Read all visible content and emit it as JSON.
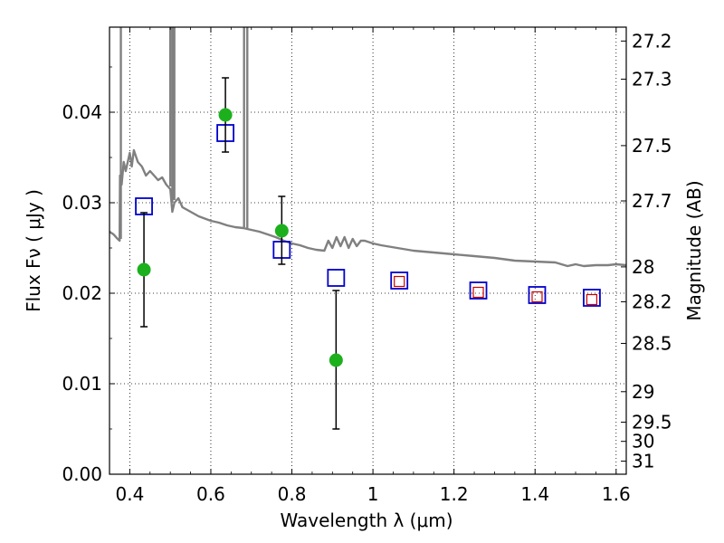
{
  "chart_data": {
    "type": "scatter",
    "xlabel": "Wavelength  λ (μm)",
    "ylabel": "Flux  Fν  ( μJy )",
    "y2label": "Magnitude (AB)",
    "xlim": [
      0.35,
      1.625
    ],
    "ylim": [
      0.0,
      0.0494
    ],
    "grid": true,
    "x_ticks": [
      0.4,
      0.6,
      0.8,
      1.0,
      1.2,
      1.4,
      1.6
    ],
    "x_tick_labels": [
      "0.4",
      "0.6",
      "0.8",
      "1",
      "1.2",
      "1.4",
      "1.6"
    ],
    "y_ticks": [
      0.0,
      0.01,
      0.02,
      0.03,
      0.04
    ],
    "y_tick_labels": [
      "0.00",
      "0.01",
      "0.02",
      "0.03",
      "0.04"
    ],
    "y2_ticks": [
      {
        "label": "27.2",
        "mag": 27.2
      },
      {
        "label": "27.3",
        "mag": 27.3
      },
      {
        "label": "27.5",
        "mag": 27.5
      },
      {
        "label": "27.7",
        "mag": 27.7
      },
      {
        "label": "28",
        "mag": 28.0
      },
      {
        "label": "28.2",
        "mag": 28.2
      },
      {
        "label": "28.5",
        "mag": 28.5
      },
      {
        "label": "29",
        "mag": 29.0
      },
      {
        "label": "29.5",
        "mag": 29.5
      },
      {
        "label": "30",
        "mag": 30.0
      },
      {
        "label": "31",
        "mag": 31.0
      }
    ],
    "observed": {
      "color": "#1db01d",
      "points": [
        {
          "x": 0.435,
          "y": 0.0226,
          "err_lo": 0.0163,
          "err_hi": 0.0289
        },
        {
          "x": 0.636,
          "y": 0.0397,
          "err_lo": 0.0356,
          "err_hi": 0.0438
        },
        {
          "x": 0.775,
          "y": 0.0269,
          "err_lo": 0.0232,
          "err_hi": 0.0307
        },
        {
          "x": 0.909,
          "y": 0.0126,
          "err_lo": 0.005,
          "err_hi": 0.0203
        }
      ]
    },
    "model_photometry": {
      "color": "#0000cc",
      "points": [
        {
          "x": 0.435,
          "y": 0.0296
        },
        {
          "x": 0.636,
          "y": 0.0377
        },
        {
          "x": 0.775,
          "y": 0.0248
        },
        {
          "x": 0.909,
          "y": 0.0217
        },
        {
          "x": 1.065,
          "y": 0.0214
        },
        {
          "x": 1.26,
          "y": 0.0203
        },
        {
          "x": 1.405,
          "y": 0.0198
        },
        {
          "x": 1.54,
          "y": 0.0195
        }
      ]
    },
    "red_photometry": {
      "color": "#cc0000",
      "points": [
        {
          "x": 1.065,
          "y": 0.0213
        },
        {
          "x": 1.26,
          "y": 0.0201
        },
        {
          "x": 1.405,
          "y": 0.0196
        },
        {
          "x": 1.54,
          "y": 0.0193
        }
      ]
    },
    "sed_spectrum": {
      "color": "#808080",
      "points": [
        [
          0.35,
          0.0268
        ],
        [
          0.36,
          0.0265
        ],
        [
          0.37,
          0.026
        ],
        [
          0.375,
          0.0258
        ],
        [
          0.376,
          0.033
        ],
        [
          0.38,
          0.032
        ],
        [
          0.385,
          0.0345
        ],
        [
          0.39,
          0.0335
        ],
        [
          0.4,
          0.0355
        ],
        [
          0.405,
          0.034
        ],
        [
          0.41,
          0.0358
        ],
        [
          0.42,
          0.0345
        ],
        [
          0.43,
          0.034
        ],
        [
          0.44,
          0.033
        ],
        [
          0.45,
          0.0335
        ],
        [
          0.46,
          0.033
        ],
        [
          0.47,
          0.0325
        ],
        [
          0.48,
          0.0328
        ],
        [
          0.49,
          0.032
        ],
        [
          0.5,
          0.0315
        ],
        [
          0.505,
          0.029
        ],
        [
          0.51,
          0.03
        ],
        [
          0.52,
          0.0305
        ],
        [
          0.53,
          0.0295
        ],
        [
          0.55,
          0.029
        ],
        [
          0.57,
          0.0285
        ],
        [
          0.6,
          0.028
        ],
        [
          0.62,
          0.0278
        ],
        [
          0.64,
          0.0275
        ],
        [
          0.66,
          0.0273
        ],
        [
          0.68,
          0.0272
        ],
        [
          0.7,
          0.027
        ],
        [
          0.72,
          0.0268
        ],
        [
          0.74,
          0.0265
        ],
        [
          0.76,
          0.0262
        ],
        [
          0.78,
          0.0258
        ],
        [
          0.8,
          0.0255
        ],
        [
          0.82,
          0.0253
        ],
        [
          0.84,
          0.025
        ],
        [
          0.86,
          0.0248
        ],
        [
          0.88,
          0.0247
        ],
        [
          0.89,
          0.0258
        ],
        [
          0.9,
          0.025
        ],
        [
          0.91,
          0.0262
        ],
        [
          0.92,
          0.0252
        ],
        [
          0.93,
          0.0262
        ],
        [
          0.94,
          0.025
        ],
        [
          0.95,
          0.026
        ],
        [
          0.96,
          0.0252
        ],
        [
          0.97,
          0.0258
        ],
        [
          0.98,
          0.0258
        ],
        [
          1.0,
          0.0255
        ],
        [
          1.02,
          0.0253
        ],
        [
          1.06,
          0.025
        ],
        [
          1.1,
          0.0247
        ],
        [
          1.15,
          0.0245
        ],
        [
          1.2,
          0.0243
        ],
        [
          1.25,
          0.0241
        ],
        [
          1.3,
          0.0239
        ],
        [
          1.35,
          0.0236
        ],
        [
          1.4,
          0.0235
        ],
        [
          1.45,
          0.0234
        ],
        [
          1.48,
          0.023
        ],
        [
          1.5,
          0.0232
        ],
        [
          1.52,
          0.023
        ],
        [
          1.55,
          0.0231
        ],
        [
          1.58,
          0.0231
        ],
        [
          1.6,
          0.0232
        ],
        [
          1.625,
          0.0231
        ]
      ],
      "emission_lines": [
        {
          "x": 0.378,
          "peak": 0.0494,
          "base": 0.026
        },
        {
          "x": 0.5,
          "peak": 0.0494,
          "base": 0.0318
        },
        {
          "x": 0.505,
          "peak": 0.0494,
          "base": 0.03
        },
        {
          "x": 0.51,
          "peak": 0.0494,
          "base": 0.0303
        },
        {
          "x": 0.682,
          "peak": 0.0494,
          "base": 0.0272
        },
        {
          "x": 0.69,
          "peak": 0.0494,
          "base": 0.0271
        }
      ]
    }
  }
}
